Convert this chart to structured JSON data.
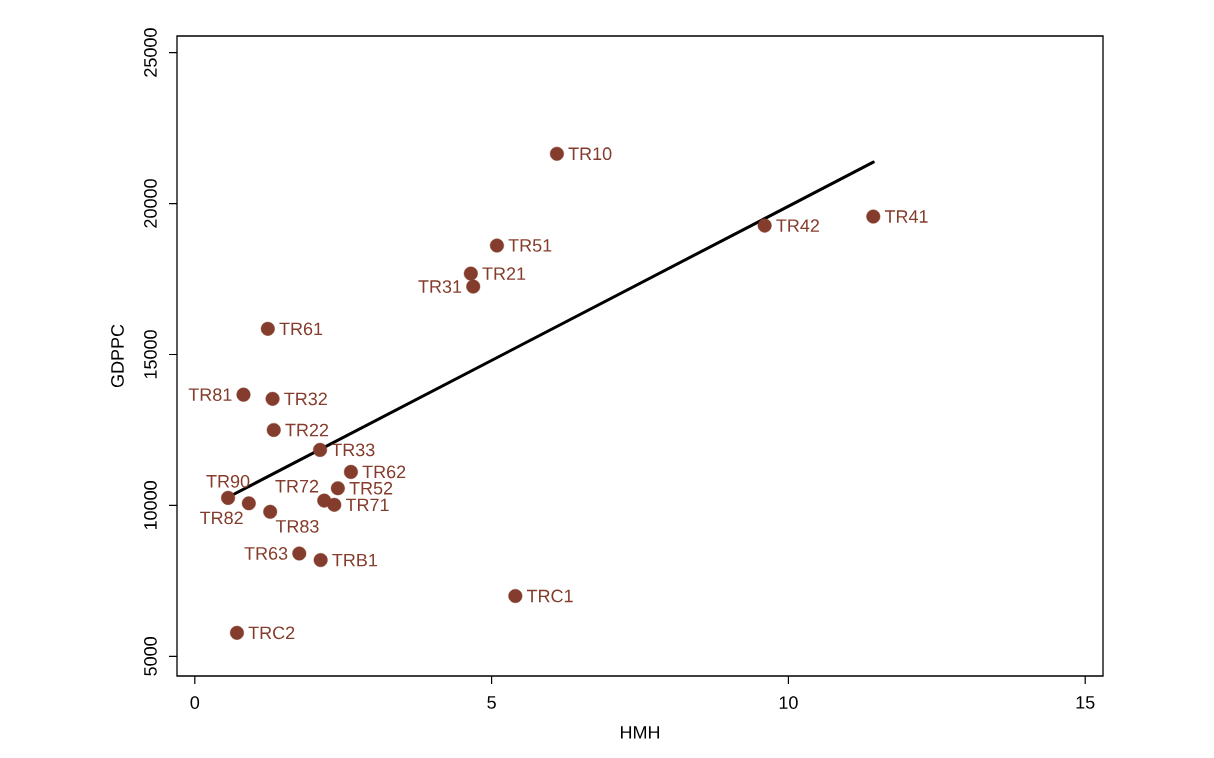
{
  "chart_data": {
    "type": "scatter",
    "xlabel": "HMH",
    "ylabel": "GDPPC",
    "xlim": [
      -0.3,
      15.3
    ],
    "ylim": [
      4350,
      25550
    ],
    "xticks": [
      0,
      5,
      10,
      15
    ],
    "yticks": [
      5000,
      10000,
      15000,
      20000,
      25000
    ],
    "series": [
      {
        "type": "line",
        "color": "#000000",
        "x": [
          0.56,
          11.43
        ],
        "values": [
          10270,
          21370
        ]
      },
      {
        "marker": "circle",
        "color": "#843c2c",
        "x": [
          6.1,
          4.65,
          1.33,
          4.69,
          1.31,
          2.11,
          11.43,
          9.6,
          5.09,
          2.41,
          1.23,
          2.63,
          1.76,
          2.35,
          2.18,
          0.82,
          0.91,
          1.27,
          0.56,
          2.12,
          5.4,
          0.71
        ],
        "values": [
          21650,
          17680,
          12500,
          17250,
          13530,
          11840,
          19570,
          19270,
          18610,
          10570,
          15850,
          11110,
          8410,
          10020,
          10160,
          13670,
          10070,
          9790,
          10250,
          8190,
          7000,
          5780
        ]
      }
    ],
    "annotations": [
      {
        "text": "TR10",
        "x": 6.1,
        "y": 21650
      },
      {
        "text": "TR21",
        "x": 4.65,
        "y": 17680
      },
      {
        "text": "TR22",
        "x": 1.33,
        "y": 12500
      },
      {
        "text": "TR31",
        "x": 4.69,
        "y": 17250
      },
      {
        "text": "TR32",
        "x": 1.31,
        "y": 13530
      },
      {
        "text": "TR33",
        "x": 2.11,
        "y": 11840
      },
      {
        "text": "TR41",
        "x": 11.43,
        "y": 19570
      },
      {
        "text": "TR42",
        "x": 9.6,
        "y": 19270
      },
      {
        "text": "TR51",
        "x": 5.09,
        "y": 18610
      },
      {
        "text": "TR52",
        "x": 2.41,
        "y": 10570
      },
      {
        "text": "TR61",
        "x": 1.23,
        "y": 15850
      },
      {
        "text": "TR62",
        "x": 2.63,
        "y": 11110
      },
      {
        "text": "TR63",
        "x": 1.76,
        "y": 8410
      },
      {
        "text": "TR71",
        "x": 2.35,
        "y": 10020
      },
      {
        "text": "TR72",
        "x": 2.18,
        "y": 10160
      },
      {
        "text": "TR81",
        "x": 0.82,
        "y": 13670
      },
      {
        "text": "TR82",
        "x": 0.91,
        "y": 10070
      },
      {
        "text": "TR83",
        "x": 1.27,
        "y": 9790
      },
      {
        "text": "TR90",
        "x": 0.56,
        "y": 10250
      },
      {
        "text": "TRB1",
        "x": 2.12,
        "y": 8190
      },
      {
        "text": "TRC1",
        "x": 5.4,
        "y": 7000
      },
      {
        "text": "TRC2",
        "x": 0.71,
        "y": 5780
      }
    ]
  }
}
